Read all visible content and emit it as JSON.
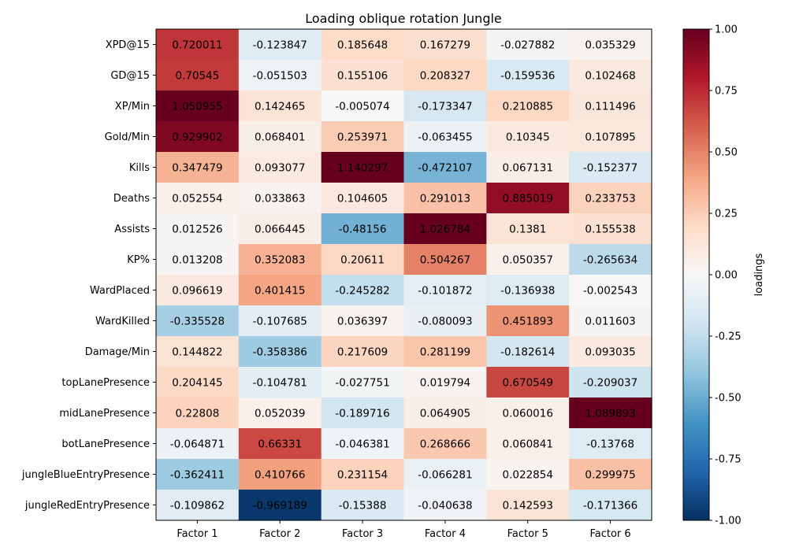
{
  "chart_data": {
    "type": "heatmap",
    "title": "Loading oblique rotation Jungle",
    "columns": [
      "Factor 1",
      "Factor 2",
      "Factor 3",
      "Factor 4",
      "Factor 5",
      "Factor 6"
    ],
    "rows": [
      "XPD@15",
      "GD@15",
      "XP/Min",
      "Gold/Min",
      "Kills",
      "Deaths",
      "Assists",
      "KP%",
      "WardPlaced",
      "WardKilled",
      "Damage/Min",
      "topLanePresence",
      "midLanePresence",
      "botLanePresence",
      "jungleBlueEntryPresence",
      "jungleRedEntryPresence"
    ],
    "values": [
      [
        "0.720011",
        "-0.123847",
        "0.185648",
        "0.167279",
        "-0.027882",
        "0.035329"
      ],
      [
        "0.70545",
        "-0.051503",
        "0.155106",
        "0.208327",
        "-0.159536",
        "0.102468"
      ],
      [
        "1.050955",
        "0.142465",
        "-0.005074",
        "-0.173347",
        "0.210885",
        "0.111496"
      ],
      [
        "0.929902",
        "0.068401",
        "0.253971",
        "-0.063455",
        "0.10345",
        "0.107895"
      ],
      [
        "0.347479",
        "0.093077",
        "1.140297",
        "-0.472107",
        "0.067131",
        "-0.152377"
      ],
      [
        "0.052554",
        "0.033863",
        "0.104605",
        "0.291013",
        "0.885019",
        "0.233753"
      ],
      [
        "0.012526",
        "0.066445",
        "-0.48156",
        "1.026784",
        "0.1381",
        "0.155538"
      ],
      [
        "0.013208",
        "0.352083",
        "0.20611",
        "0.504267",
        "0.050357",
        "-0.265634"
      ],
      [
        "0.096619",
        "0.401415",
        "-0.245282",
        "-0.101872",
        "-0.136938",
        "-0.002543"
      ],
      [
        "-0.335528",
        "-0.107685",
        "0.036397",
        "-0.080093",
        "0.451893",
        "0.011603"
      ],
      [
        "0.144822",
        "-0.358386",
        "0.217609",
        "0.281199",
        "-0.182614",
        "0.093035"
      ],
      [
        "0.204145",
        "-0.104781",
        "-0.027751",
        "0.019794",
        "0.670549",
        "-0.209037"
      ],
      [
        "0.22808",
        "0.052039",
        "-0.189716",
        "0.064905",
        "0.060016",
        "1.089893"
      ],
      [
        "-0.064871",
        "0.66331",
        "-0.046381",
        "0.268666",
        "0.060841",
        "-0.13768"
      ],
      [
        "-0.362411",
        "0.410766",
        "0.231154",
        "-0.066281",
        "0.022854",
        "0.299975"
      ],
      [
        "-0.109862",
        "-0.969189",
        "-0.15388",
        "-0.040638",
        "0.142593",
        "-0.171366"
      ]
    ],
    "colorbar": {
      "label": "loadings",
      "vmin": -1.0,
      "vmax": 1.0,
      "ticks": [
        "-1.00",
        "-0.75",
        "-0.50",
        "-0.25",
        "0.00",
        "0.25",
        "0.50",
        "0.75",
        "1.00"
      ],
      "colormap": "RdBu_r"
    }
  },
  "colors": {
    "background": "#ffffff",
    "text": "#000000",
    "axis": "#000000"
  }
}
